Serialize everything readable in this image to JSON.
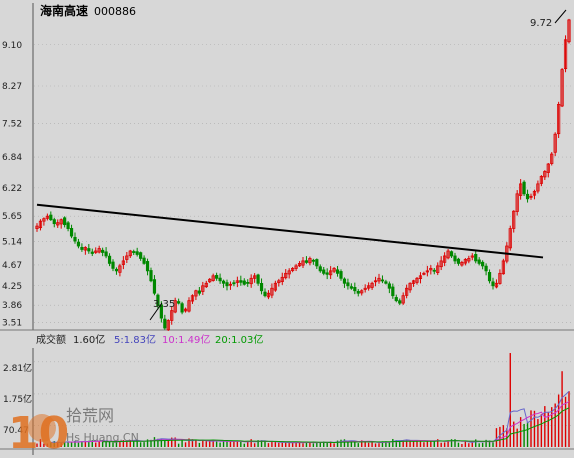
{
  "stock": {
    "name": "海南高速",
    "code": "000886"
  },
  "price_axis": {
    "ticks": [
      "9.10",
      "8.27",
      "7.52",
      "6.84",
      "6.22",
      "5.65",
      "5.14",
      "4.67",
      "4.25",
      "3.86",
      "3.51"
    ]
  },
  "annotations": {
    "high": "9.72",
    "low": "3.35"
  },
  "volume_panel": {
    "label": "成交额",
    "value": "1.60亿",
    "ma5": "5:1.83亿",
    "ma10": "10:1.49亿",
    "ma20": "20:1.03亿",
    "ticks": [
      "2.81亿",
      "1.75亿",
      "70.47"
    ]
  },
  "watermark": {
    "logo_number": "10",
    "cn": "拾荒网",
    "en": "Hs Huang.CN"
  },
  "colors": {
    "up": "#dd0000",
    "down": "#008800",
    "ma5": "#6666cc",
    "ma10": "#cc33cc",
    "ma20": "#009900",
    "trendline": "#000000"
  },
  "chart_data": {
    "type": "candlestick",
    "title": "海南高速 000886",
    "ylim": [
      3.4,
      9.9
    ],
    "y_ticks": [
      9.1,
      8.27,
      7.52,
      6.84,
      6.22,
      5.65,
      5.14,
      4.67,
      4.25,
      3.86,
      3.51
    ],
    "close": [
      5.45,
      5.55,
      5.6,
      5.65,
      5.58,
      5.5,
      5.52,
      5.58,
      5.48,
      5.4,
      5.25,
      5.15,
      5.05,
      4.98,
      5.02,
      4.95,
      4.9,
      4.95,
      5.0,
      4.92,
      4.85,
      4.7,
      4.6,
      4.55,
      4.65,
      4.75,
      4.85,
      4.95,
      4.92,
      4.88,
      4.8,
      4.7,
      4.55,
      4.35,
      4.1,
      3.85,
      3.6,
      3.4,
      3.55,
      3.75,
      3.95,
      3.9,
      3.72,
      3.78,
      3.95,
      4.05,
      4.15,
      4.1,
      4.25,
      4.3,
      4.38,
      4.45,
      4.4,
      4.35,
      4.3,
      4.25,
      4.28,
      4.3,
      4.35,
      4.32,
      4.28,
      4.3,
      4.4,
      4.45,
      4.3,
      4.15,
      4.05,
      4.1,
      4.2,
      4.3,
      4.35,
      4.42,
      4.5,
      4.55,
      4.6,
      4.65,
      4.7,
      4.75,
      4.72,
      4.8,
      4.75,
      4.65,
      4.55,
      4.5,
      4.48,
      4.55,
      4.6,
      4.5,
      4.4,
      4.3,
      4.25,
      4.2,
      4.15,
      4.1,
      4.15,
      4.2,
      4.25,
      4.3,
      4.35,
      4.4,
      4.35,
      4.3,
      4.2,
      4.05,
      3.95,
      3.9,
      4.05,
      4.2,
      4.3,
      4.35,
      4.4,
      4.45,
      4.5,
      4.55,
      4.6,
      4.55,
      4.65,
      4.75,
      4.85,
      4.95,
      4.85,
      4.75,
      4.7,
      4.72,
      4.78,
      4.8,
      4.85,
      4.75,
      4.7,
      4.65,
      4.55,
      4.35,
      4.25,
      4.3,
      4.5,
      4.75,
      5.05,
      5.4,
      5.75,
      6.1,
      6.3,
      6.1,
      6.0,
      6.05,
      6.15,
      6.3,
      6.45,
      6.55,
      6.7,
      6.9,
      7.3,
      7.9,
      8.6,
      9.2,
      9.6
    ],
    "volume_ma": {
      "ma5": 1.83,
      "ma10": 1.49,
      "ma20": 1.03,
      "unit": "亿"
    },
    "volume_latest": 1.6,
    "volume_ylim": [
      0,
      3.2
    ],
    "trendline": {
      "start": 5.88,
      "end": 4.82
    },
    "lows_marked": 3.35,
    "highs_marked": 9.72
  }
}
